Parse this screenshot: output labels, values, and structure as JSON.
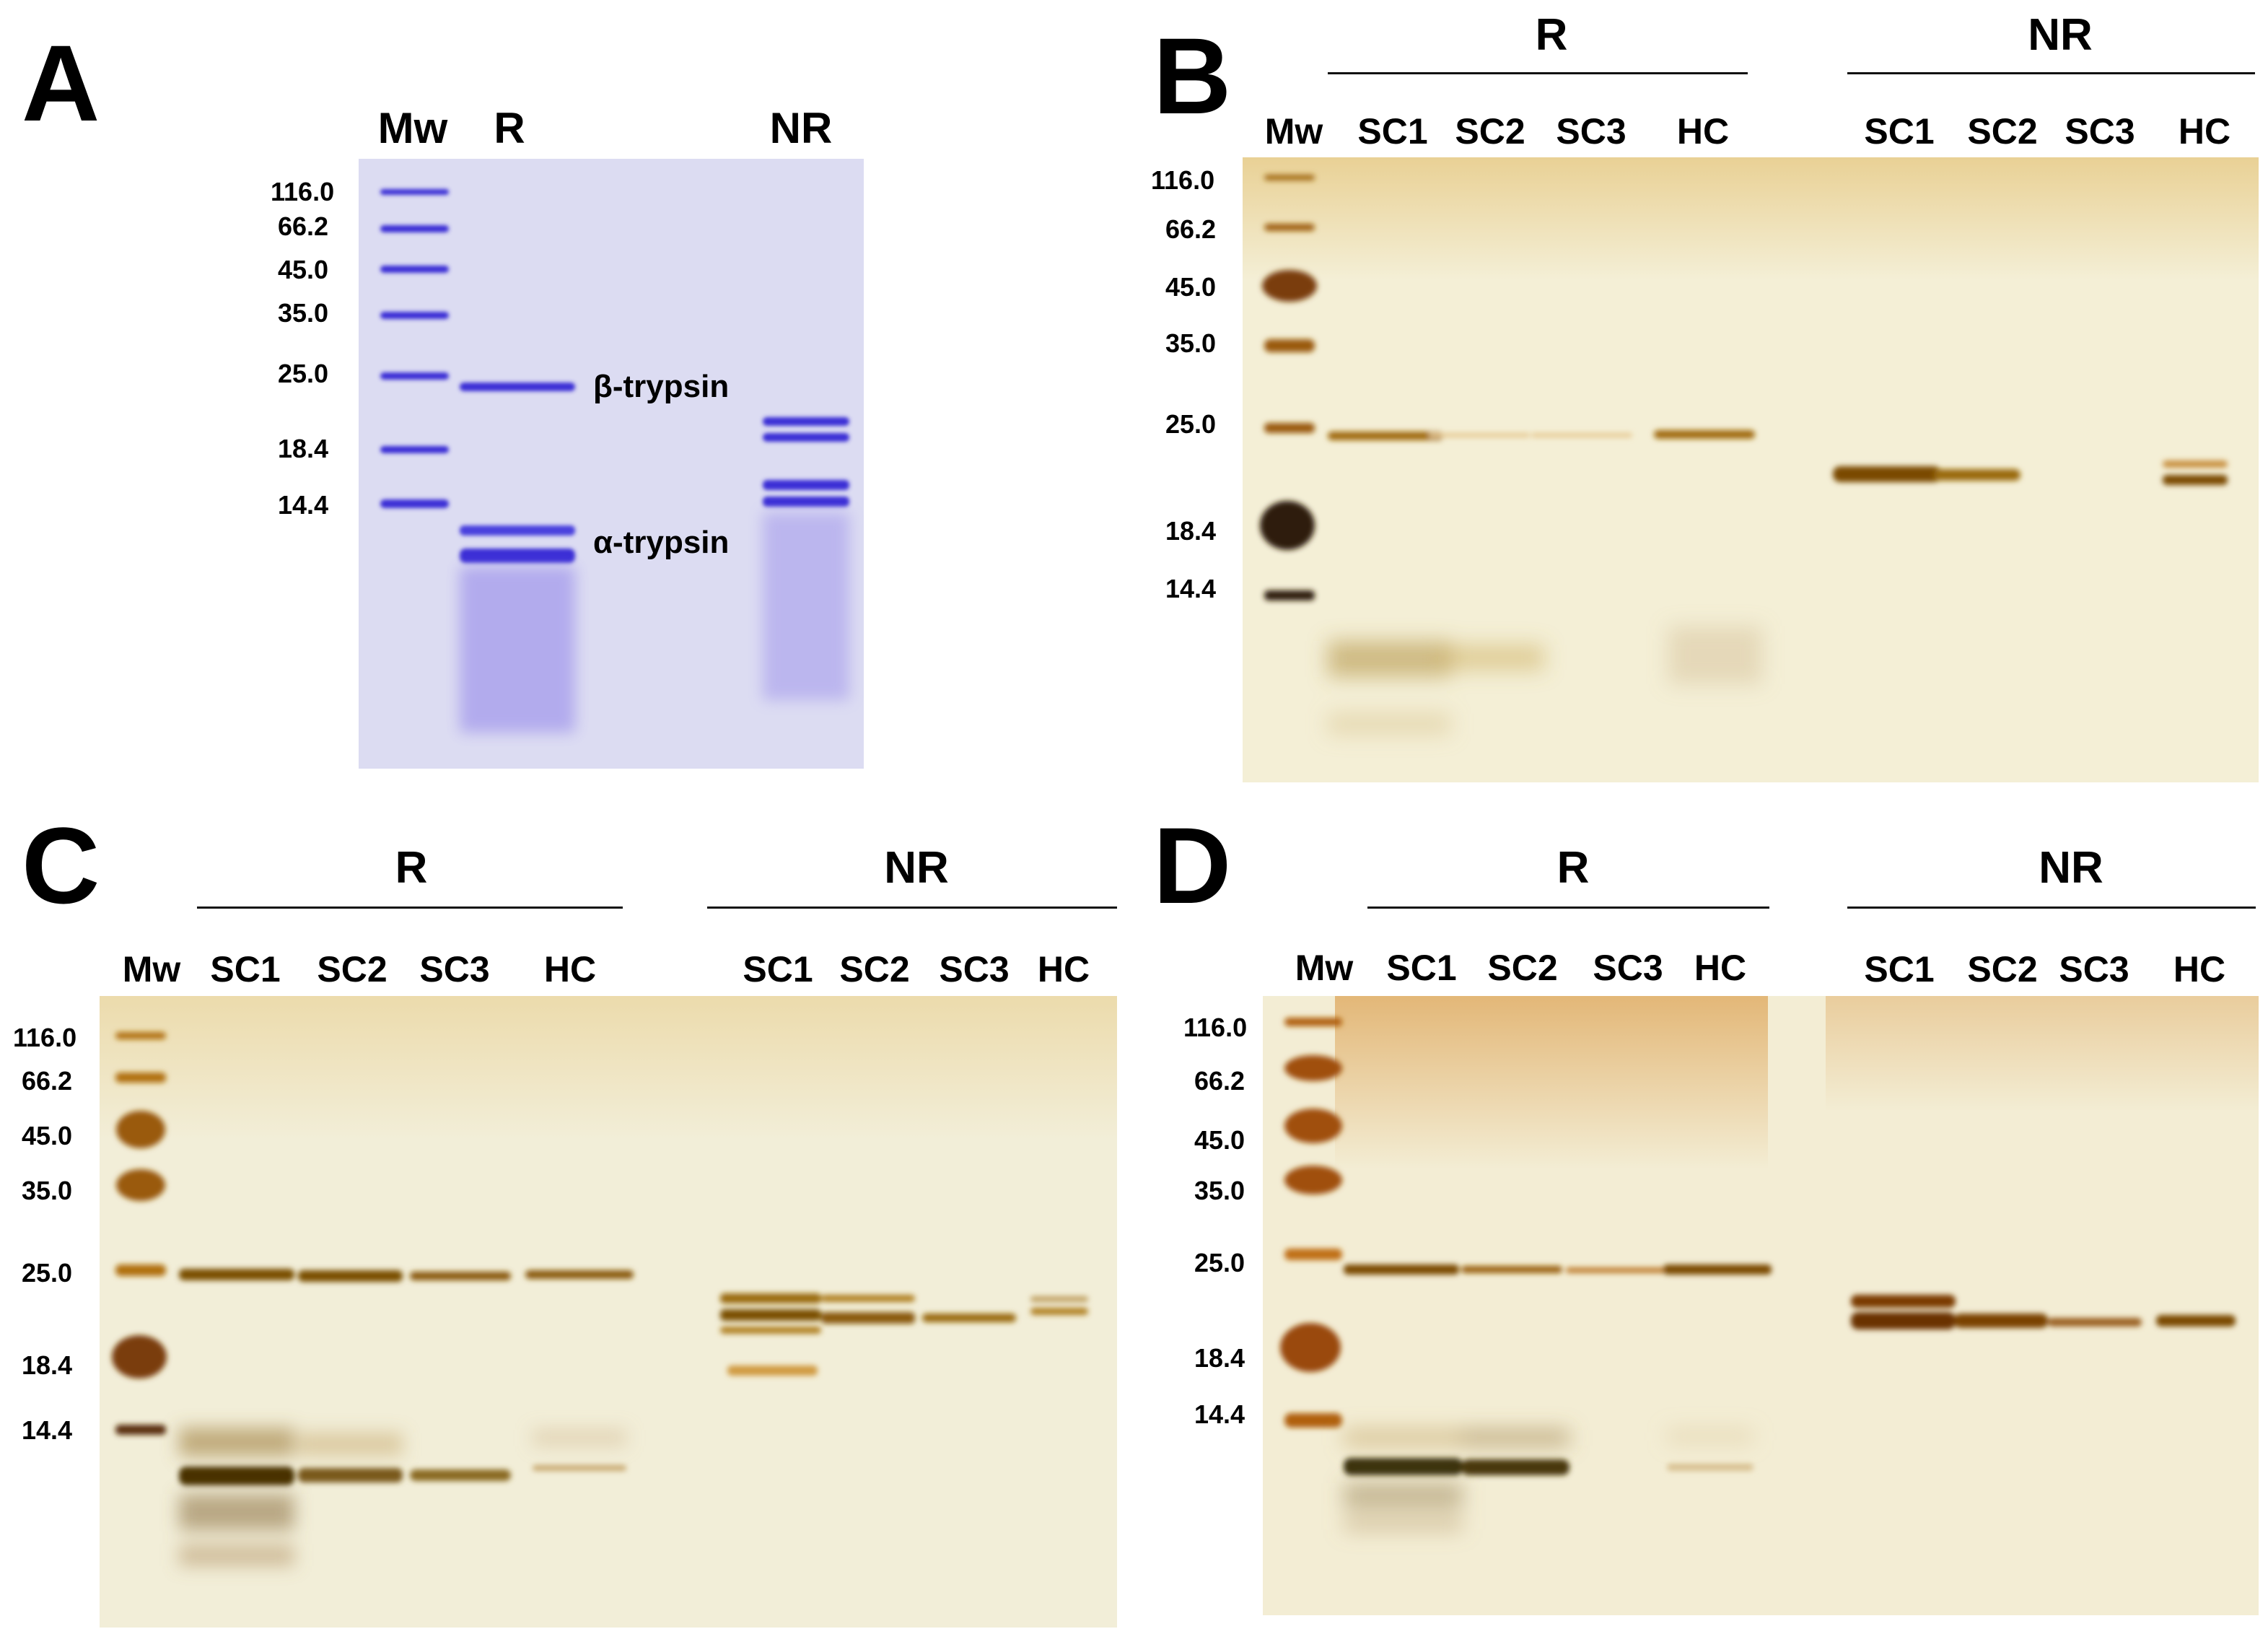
{
  "panels": {
    "A": {
      "letter": "A",
      "lanes": {
        "mw": "Mw",
        "r": "R",
        "nr": "NR"
      },
      "markers": [
        "116.0",
        "66.2",
        "45.0",
        "35.0",
        "25.0",
        "18.4",
        "14.4"
      ],
      "band_labels": {
        "beta": "β-trypsin",
        "alpha": "α-trypsin"
      },
      "colors": {
        "gel": "#dcdcf2",
        "band": "#3a2fd6"
      }
    },
    "B": {
      "letter": "B",
      "groups": {
        "r": "R",
        "nr": "NR"
      },
      "lanes": {
        "mw": "Mw",
        "r": [
          "SC1",
          "SC2",
          "SC3",
          "HC"
        ],
        "nr": [
          "SC1",
          "SC2",
          "SC3",
          "HC"
        ]
      },
      "markers": [
        "116.0",
        "66.2",
        "45.0",
        "35.0",
        "25.0",
        "18.4",
        "14.4"
      ],
      "colors": {
        "gel": "#f4efd6",
        "band": "#b07a10"
      }
    },
    "C": {
      "letter": "C",
      "groups": {
        "r": "R",
        "nr": "NR"
      },
      "lanes": {
        "mw": "Mw",
        "r": [
          "SC1",
          "SC2",
          "SC3",
          "HC"
        ],
        "nr": [
          "SC1",
          "SC2",
          "SC3",
          "HC"
        ]
      },
      "markers": [
        "116.0",
        "66.2",
        "45.0",
        "35.0",
        "25.0",
        "18.4",
        "14.4"
      ],
      "colors": {
        "gel": "#f2eed8",
        "band": "#a6740e"
      }
    },
    "D": {
      "letter": "D",
      "groups": {
        "r": "R",
        "nr": "NR"
      },
      "lanes": {
        "mw": "Mw",
        "r": [
          "SC1",
          "SC2",
          "SC3",
          "HC"
        ],
        "nr": [
          "SC1",
          "SC2",
          "SC3",
          "HC"
        ]
      },
      "markers": [
        "116.0",
        "66.2",
        "45.0",
        "35.0",
        "25.0",
        "18.4",
        "14.4"
      ],
      "colors": {
        "gel": "#f3edd4",
        "band": "#b06a10"
      }
    }
  }
}
